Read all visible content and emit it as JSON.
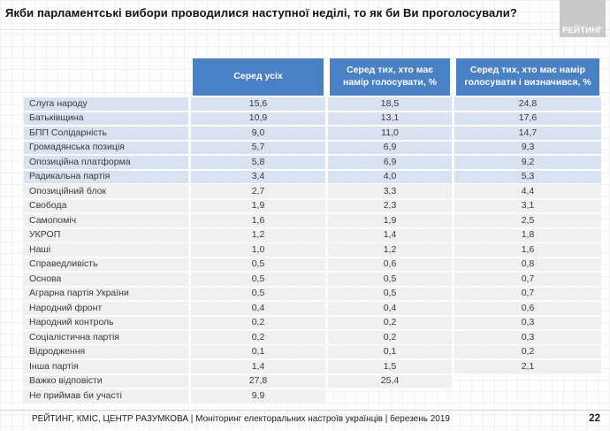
{
  "title": "Якби парламентські вибори проводилися наступної неділі, то як би Ви проголосували?",
  "logo": {
    "text": "РЕЙТИНГ"
  },
  "table": {
    "column_headers": [
      "Серед усіх",
      "Серед тих, хто має намір голосувати, %",
      "Серед тих, хто має намір голосувати і визначився, %"
    ],
    "rows": [
      {
        "party": "Слуга народу",
        "all": "15,6",
        "intend": "18,5",
        "decided": "24,8",
        "band": "blue"
      },
      {
        "party": "Батьківщина",
        "all": "10,9",
        "intend": "13,1",
        "decided": "17,6",
        "band": "blue"
      },
      {
        "party": "БПП Солідарність",
        "all": "9,0",
        "intend": "11,0",
        "decided": "14,7",
        "band": "blue"
      },
      {
        "party": "Громадянська позиція",
        "all": "5,7",
        "intend": "6,9",
        "decided": "9,3",
        "band": "blue"
      },
      {
        "party": "Опозиційна платформа",
        "all": "5,8",
        "intend": "6,9",
        "decided": "9,2",
        "band": "blue"
      },
      {
        "party": "Радикальна партія",
        "all": "3,4",
        "intend": "4,0",
        "decided": "5,3",
        "band": "blue"
      },
      {
        "party": "Опозиційний блок",
        "all": "2,7",
        "intend": "3,3",
        "decided": "4,4",
        "band": "gray"
      },
      {
        "party": "Свобода",
        "all": "1,9",
        "intend": "2,3",
        "decided": "3,1",
        "band": "gray"
      },
      {
        "party": "Самопоміч",
        "all": "1,6",
        "intend": "1,9",
        "decided": "2,5",
        "band": "gray"
      },
      {
        "party": "УКРОП",
        "all": "1,2",
        "intend": "1,4",
        "decided": "1,8",
        "band": "gray"
      },
      {
        "party": "Наші",
        "all": "1,0",
        "intend": "1,2",
        "decided": "1,6",
        "band": "gray"
      },
      {
        "party": "Справедливість",
        "all": "0,5",
        "intend": "0,6",
        "decided": "0,8",
        "band": "gray"
      },
      {
        "party": "Основа",
        "all": "0,5",
        "intend": "0,5",
        "decided": "0,7",
        "band": "gray"
      },
      {
        "party": "Аграрна партія України",
        "all": "0,5",
        "intend": "0,5",
        "decided": "0,7",
        "band": "gray"
      },
      {
        "party": "Народний фронт",
        "all": "0,4",
        "intend": "0,4",
        "decided": "0,6",
        "band": "gray"
      },
      {
        "party": "Народний контроль",
        "all": "0,2",
        "intend": "0,2",
        "decided": "0,3",
        "band": "gray"
      },
      {
        "party": "Соціалістична партія",
        "all": "0,2",
        "intend": "0,2",
        "decided": "0,3",
        "band": "gray"
      },
      {
        "party": "Відродження",
        "all": "0,1",
        "intend": "0,1",
        "decided": "0,2",
        "band": "gray"
      },
      {
        "party": "Інша партія",
        "all": "1,4",
        "intend": "1,5",
        "decided": "2,1",
        "band": "gray"
      },
      {
        "party": "Важко відповісти",
        "all": "27,8",
        "intend": "25,4",
        "decided": null,
        "band": "gray"
      },
      {
        "party": "Не приймав би участі",
        "all": "9,9",
        "intend": null,
        "decided": null,
        "band": "gray"
      }
    ]
  },
  "footer": {
    "line": "РЕЙТИНГ, КМІС, ЦЕНТР РАЗУМКОВА  | Моніторинг електоральних настроїв українців | березень 2019",
    "page": "22"
  },
  "colors": {
    "header_bg": "#4a80c4",
    "row_blue": "#d9e2f0",
    "row_gray": "#f0f0f1",
    "logo_bg": "#c9c9c9",
    "header_text": "#ffffff"
  }
}
